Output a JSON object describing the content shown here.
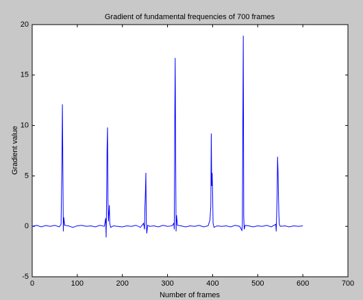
{
  "chart_data": {
    "type": "line",
    "title": "Gradient of fundamental frequencies of 700 frames",
    "x_label": "Number of frames",
    "y_label": "Gradient value",
    "xlim": [
      0,
      700
    ],
    "xticks": [
      0,
      100,
      200,
      300,
      400,
      500,
      600,
      700
    ],
    "ylim": [
      -5,
      20
    ],
    "yticks": [
      -5,
      0,
      5,
      10,
      15,
      20
    ],
    "grid": false,
    "series": [
      {
        "color": "#0000ff",
        "x": [
          0,
          10,
          20,
          30,
          40,
          50,
          60,
          64,
          66,
          67,
          68,
          69,
          70,
          72,
          80,
          90,
          100,
          110,
          120,
          130,
          140,
          150,
          160,
          163,
          164,
          165,
          166,
          167,
          168,
          169,
          171,
          172,
          174,
          180,
          190,
          200,
          210,
          220,
          230,
          240,
          247,
          249,
          250,
          251,
          252,
          253,
          254,
          256,
          260,
          270,
          280,
          290,
          300,
          310,
          314,
          315,
          316,
          317,
          318,
          319,
          320,
          322,
          330,
          340,
          350,
          360,
          370,
          380,
          390,
          394,
          396,
          397,
          398,
          399,
          400,
          401,
          403,
          410,
          420,
          430,
          440,
          450,
          460,
          465,
          466,
          467,
          468,
          469,
          470,
          472,
          480,
          490,
          500,
          510,
          520,
          530,
          540,
          541,
          543,
          544,
          545,
          546,
          547,
          548,
          550,
          560,
          570,
          580,
          590,
          600
        ],
        "values": [
          0,
          0.1,
          -0.05,
          0.08,
          0,
          0.1,
          -0.05,
          0.2,
          6.5,
          12.1,
          6,
          -0.5,
          0.9,
          0.1,
          0.05,
          -0.1,
          0.05,
          0.1,
          0,
          0.05,
          -0.05,
          0.1,
          0,
          0.8,
          -1.1,
          3,
          7.6,
          9.8,
          2.5,
          0.5,
          2.1,
          0.3,
          -0.1,
          0.05,
          0,
          -0.05,
          0.05,
          0,
          0.1,
          -0.1,
          0.3,
          -0.3,
          2,
          3.3,
          5.3,
          0.5,
          -0.7,
          0.1,
          0,
          0.05,
          -0.05,
          0.1,
          0,
          0.05,
          0.3,
          -0.3,
          10,
          16.7,
          7.5,
          -0.5,
          1.1,
          0.1,
          0.05,
          -0.05,
          0.05,
          0,
          0.1,
          -0.05,
          0.05,
          0.6,
          2,
          9.2,
          4,
          5.3,
          3.3,
          0.3,
          -0.1,
          0.05,
          0,
          0.05,
          -0.05,
          0.1,
          0,
          -0.4,
          0.3,
          10.3,
          18.9,
          1,
          -0.3,
          0.1,
          0.05,
          -0.05,
          0.05,
          0,
          0.1,
          -0.05,
          0.2,
          -0.5,
          3,
          6.9,
          5.5,
          3,
          1,
          0.2,
          0,
          0.05,
          -0.05,
          0.05,
          0,
          0.05
        ]
      }
    ]
  }
}
